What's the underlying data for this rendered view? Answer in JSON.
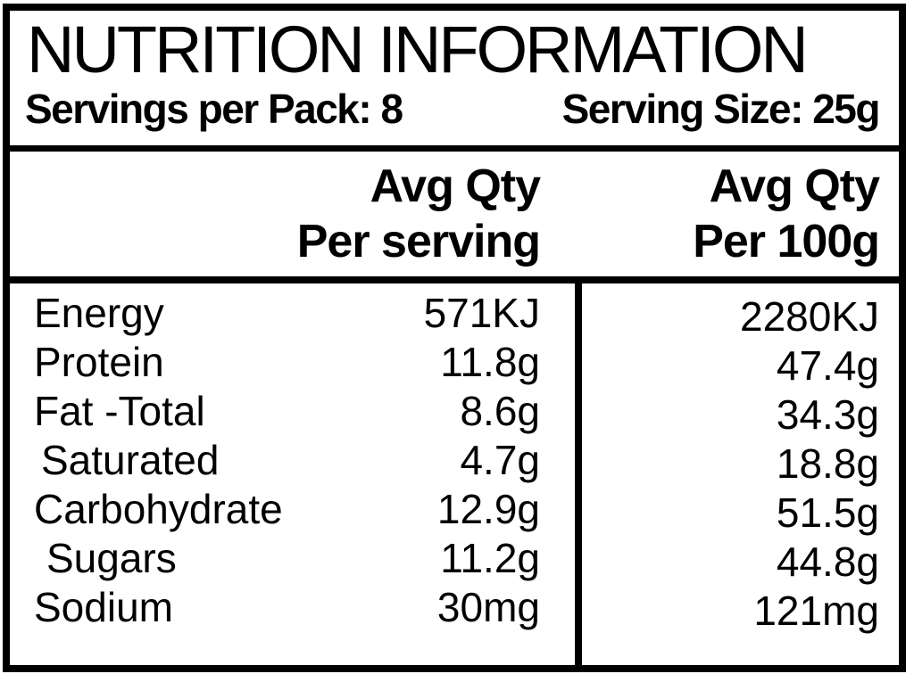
{
  "panel": {
    "title": "NUTRITION INFORMATION",
    "servings_per_pack": "Servings per Pack: 8",
    "serving_size": "Serving Size: 25g"
  },
  "header": {
    "per_serving": {
      "line1": "Avg Qty",
      "line2": "Per serving"
    },
    "per_100g": {
      "line1": "Avg Qty",
      "line2": "Per 100g"
    }
  },
  "rows": [
    {
      "nutrient": "Energy",
      "per_serving": "571KJ",
      "per_100g": "2280KJ"
    },
    {
      "nutrient": "Protein",
      "per_serving": "11.8g",
      "per_100g": "47.4g"
    },
    {
      "nutrient": "Fat -Total",
      "per_serving": "8.6g",
      "per_100g": "34.3g"
    },
    {
      "nutrient": "Saturated",
      "per_serving": "4.7g",
      "per_100g": "18.8g"
    },
    {
      "nutrient": "Carbohydrate",
      "per_serving": "12.9g",
      "per_100g": "51.5g"
    },
    {
      "nutrient": "Sugars",
      "per_serving": "11.2g",
      "per_100g": "44.8g"
    },
    {
      "nutrient": "Sodium",
      "per_serving": "30mg",
      "per_100g": "121mg"
    }
  ],
  "colors": {
    "ink": "#000000",
    "background": "#ffffff"
  }
}
